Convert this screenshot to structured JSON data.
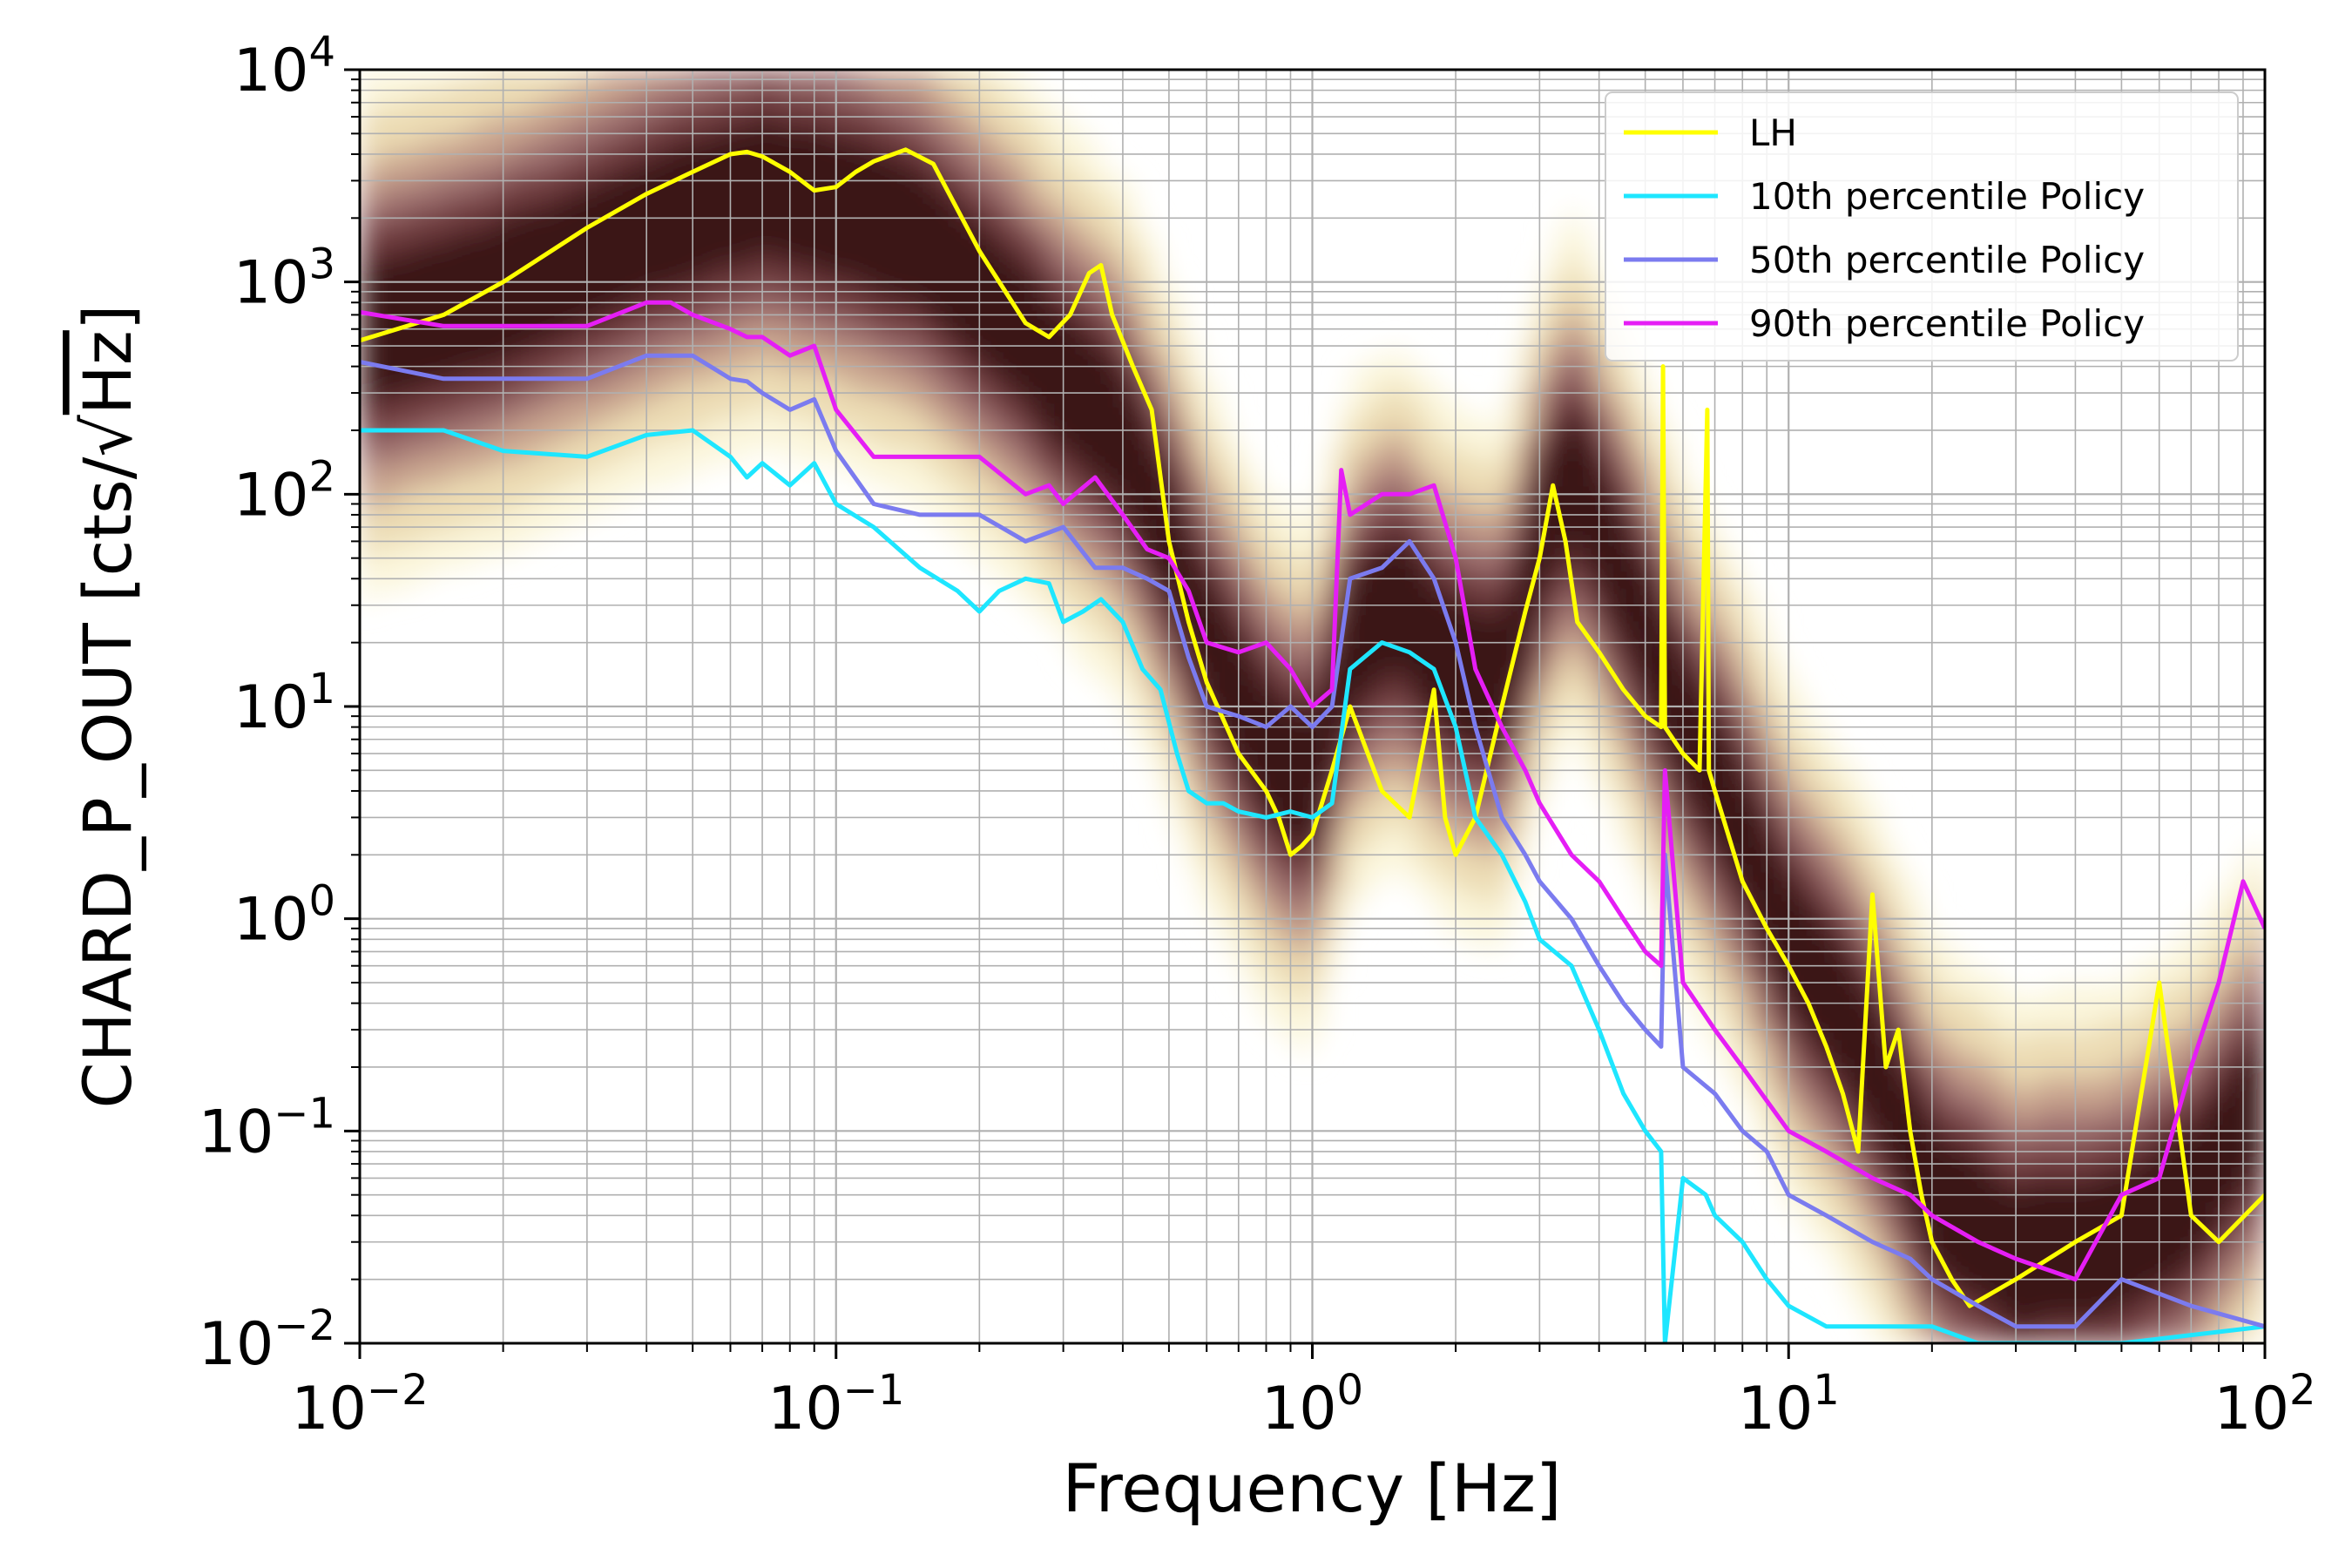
{
  "chart_data": {
    "type": "line",
    "title": "",
    "xlabel": "Frequency [Hz]",
    "ylabel": "CHARD_P_OUT [cts/√Hz]",
    "ylabel_parts": {
      "before": "CHARD_P_OUT [cts/",
      "root": "√",
      "radicand": "Hz",
      "after": "]"
    },
    "xscale": "log",
    "yscale": "log",
    "xlim": [
      0.01,
      100
    ],
    "ylim": [
      0.01,
      10000
    ],
    "x_ticks": [
      {
        "value": 0.01,
        "base": "10",
        "exp": "−2"
      },
      {
        "value": 0.1,
        "base": "10",
        "exp": "−1"
      },
      {
        "value": 1,
        "base": "10",
        "exp": "0"
      },
      {
        "value": 10,
        "base": "10",
        "exp": "1"
      },
      {
        "value": 100,
        "base": "10",
        "exp": "2"
      }
    ],
    "y_ticks": [
      {
        "value": 0.01,
        "base": "10",
        "exp": "−2"
      },
      {
        "value": 0.1,
        "base": "10",
        "exp": "−1"
      },
      {
        "value": 1,
        "base": "10",
        "exp": "0"
      },
      {
        "value": 10,
        "base": "10",
        "exp": "1"
      },
      {
        "value": 100,
        "base": "10",
        "exp": "2"
      },
      {
        "value": 1000,
        "base": "10",
        "exp": "3"
      },
      {
        "value": 10000,
        "base": "10",
        "exp": "4"
      }
    ],
    "grid": "major and minor",
    "legend_position": "top-right",
    "background": "spectrogram histogram",
    "heatmap_colors": [
      "#fbf6dc",
      "#ecdcb4",
      "#c9a48f",
      "#9e6f6f",
      "#6e3a3e",
      "#3a1518"
    ],
    "heatmap_ridge": {
      "x": [
        0.01,
        0.02,
        0.04,
        0.07,
        0.1,
        0.15,
        0.2,
        0.3,
        0.4,
        0.5,
        0.6,
        0.8,
        1.0,
        1.2,
        1.5,
        2.0,
        2.5,
        3.0,
        3.5,
        4.5,
        6,
        8,
        10,
        13,
        16,
        20,
        30,
        50,
        70,
        100
      ],
      "y": [
        550,
        900,
        1800,
        2800,
        2300,
        1600,
        900,
        350,
        180,
        60,
        20,
        6,
        4,
        20,
        30,
        15,
        12,
        60,
        130,
        40,
        8,
        2.5,
        0.8,
        0.35,
        0.15,
        0.05,
        0.025,
        0.03,
        0.05,
        0.15
      ]
    },
    "series": [
      {
        "name": "LH",
        "color": "#ffff00",
        "x": [
          0.01,
          0.015,
          0.02,
          0.03,
          0.04,
          0.05,
          0.06,
          0.065,
          0.07,
          0.08,
          0.09,
          0.1,
          0.11,
          0.12,
          0.14,
          0.16,
          0.2,
          0.25,
          0.28,
          0.31,
          0.34,
          0.36,
          0.38,
          0.42,
          0.46,
          0.5,
          0.55,
          0.6,
          0.7,
          0.8,
          0.85,
          0.9,
          0.95,
          1.0,
          1.1,
          1.2,
          1.4,
          1.6,
          1.8,
          1.9,
          2.0,
          2.2,
          2.5,
          2.8,
          3.0,
          3.2,
          3.4,
          3.6,
          4.0,
          4.5,
          5.0,
          5.4,
          5.45,
          5.5,
          6.0,
          6.5,
          6.75,
          6.8,
          7.0,
          8.0,
          9.0,
          10,
          11,
          12,
          13,
          14,
          15,
          16,
          17,
          18,
          19,
          20,
          22,
          24,
          30,
          40,
          50,
          60,
          70,
          80,
          100
        ],
        "y": [
          530,
          700,
          1000,
          1800,
          2600,
          3300,
          4000,
          4100,
          3900,
          3300,
          2700,
          2800,
          3300,
          3700,
          4200,
          3600,
          1400,
          640,
          550,
          700,
          1100,
          1200,
          700,
          400,
          250,
          60,
          25,
          13,
          6,
          4,
          3,
          2,
          2.2,
          2.5,
          5,
          10,
          4,
          3,
          12,
          3,
          2,
          3,
          10,
          28,
          50,
          110,
          60,
          25,
          18,
          12,
          9,
          8,
          400,
          8,
          6,
          5,
          250,
          5,
          4,
          1.5,
          0.9,
          0.6,
          0.4,
          0.25,
          0.15,
          0.08,
          1.3,
          0.2,
          0.3,
          0.1,
          0.05,
          0.03,
          0.02,
          0.015,
          0.02,
          0.03,
          0.04,
          0.5,
          0.04,
          0.03,
          0.05
        ]
      },
      {
        "name": "10th percentile Policy",
        "color": "#1ee6ff",
        "x": [
          0.01,
          0.015,
          0.02,
          0.03,
          0.04,
          0.05,
          0.06,
          0.065,
          0.07,
          0.08,
          0.09,
          0.1,
          0.12,
          0.15,
          0.18,
          0.2,
          0.22,
          0.25,
          0.28,
          0.3,
          0.33,
          0.36,
          0.4,
          0.44,
          0.48,
          0.52,
          0.55,
          0.6,
          0.65,
          0.7,
          0.8,
          0.9,
          1.0,
          1.1,
          1.2,
          1.4,
          1.6,
          1.8,
          2.0,
          2.2,
          2.5,
          2.8,
          3.0,
          3.5,
          4.0,
          4.5,
          5.0,
          5.4,
          5.5,
          6.0,
          6.7,
          7.0,
          8.0,
          9.0,
          10,
          12,
          14,
          16,
          20,
          25,
          30,
          50,
          100
        ],
        "y": [
          200,
          200,
          160,
          150,
          190,
          200,
          150,
          120,
          140,
          110,
          140,
          90,
          70,
          45,
          35,
          28,
          35,
          40,
          38,
          25,
          28,
          32,
          25,
          15,
          12,
          6,
          4,
          3.5,
          3.5,
          3.2,
          3,
          3.2,
          3,
          3.5,
          15,
          20,
          18,
          15,
          8,
          3,
          2,
          1.2,
          0.8,
          0.6,
          0.3,
          0.15,
          0.1,
          0.08,
          0.01,
          0.06,
          0.05,
          0.04,
          0.03,
          0.02,
          0.015,
          0.012,
          0.012,
          0.012,
          0.012,
          0.01,
          0.01,
          0.01,
          0.012
        ]
      },
      {
        "name": "50th percentile Policy",
        "color": "#7b7bef",
        "x": [
          0.01,
          0.015,
          0.02,
          0.03,
          0.04,
          0.05,
          0.06,
          0.065,
          0.07,
          0.08,
          0.09,
          0.1,
          0.12,
          0.15,
          0.2,
          0.25,
          0.3,
          0.35,
          0.4,
          0.45,
          0.5,
          0.55,
          0.6,
          0.7,
          0.8,
          0.9,
          1.0,
          1.1,
          1.2,
          1.4,
          1.6,
          1.8,
          2.0,
          2.2,
          2.5,
          2.8,
          3.0,
          3.5,
          4.0,
          4.5,
          5.0,
          5.4,
          5.5,
          6.0,
          7.0,
          8.0,
          9.0,
          10,
          12,
          15,
          18,
          20,
          25,
          30,
          40,
          50,
          70,
          100
        ],
        "y": [
          420,
          350,
          350,
          350,
          450,
          450,
          350,
          340,
          300,
          250,
          280,
          160,
          90,
          80,
          80,
          60,
          70,
          45,
          45,
          40,
          35,
          17,
          10,
          9,
          8,
          10,
          8,
          10,
          40,
          45,
          60,
          40,
          20,
          8,
          3,
          2,
          1.5,
          1,
          0.6,
          0.4,
          0.3,
          0.25,
          2,
          0.2,
          0.15,
          0.1,
          0.08,
          0.05,
          0.04,
          0.03,
          0.025,
          0.02,
          0.015,
          0.012,
          0.012,
          0.02,
          0.015,
          0.012
        ]
      },
      {
        "name": "90th percentile Policy",
        "color": "#e51ef5",
        "x": [
          0.01,
          0.015,
          0.02,
          0.03,
          0.04,
          0.045,
          0.05,
          0.06,
          0.065,
          0.07,
          0.08,
          0.09,
          0.1,
          0.12,
          0.15,
          0.18,
          0.2,
          0.25,
          0.28,
          0.3,
          0.35,
          0.4,
          0.45,
          0.5,
          0.55,
          0.6,
          0.7,
          0.8,
          0.9,
          1.0,
          1.1,
          1.15,
          1.2,
          1.4,
          1.6,
          1.8,
          2.0,
          2.2,
          2.5,
          2.8,
          3.0,
          3.5,
          4.0,
          4.5,
          5.0,
          5.4,
          5.5,
          6.0,
          7.0,
          8.0,
          10,
          12,
          15,
          18,
          20,
          25,
          30,
          40,
          50,
          60,
          70,
          80,
          90,
          100
        ],
        "y": [
          720,
          620,
          620,
          620,
          800,
          800,
          700,
          600,
          550,
          550,
          450,
          500,
          250,
          150,
          150,
          150,
          150,
          100,
          110,
          90,
          120,
          80,
          55,
          50,
          35,
          20,
          18,
          20,
          15,
          10,
          12,
          130,
          80,
          100,
          100,
          110,
          50,
          15,
          8,
          5,
          3.5,
          2,
          1.5,
          1,
          0.7,
          0.6,
          5,
          0.5,
          0.3,
          0.2,
          0.1,
          0.08,
          0.06,
          0.05,
          0.04,
          0.03,
          0.025,
          0.02,
          0.05,
          0.06,
          0.2,
          0.5,
          1.5,
          0.9
        ]
      }
    ]
  }
}
